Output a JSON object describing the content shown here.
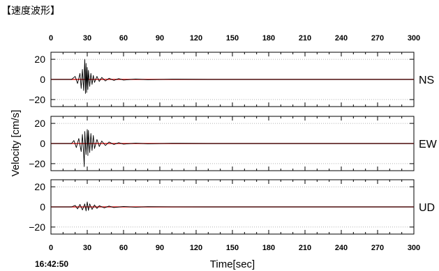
{
  "page": {
    "heading": "【速度波形】"
  },
  "chart_data": {
    "type": "line",
    "title": "",
    "xlabel": "Time[sec]",
    "ylabel": "Velocity [cm/s]",
    "start_time": "16:42:50",
    "xlim": [
      0,
      300
    ],
    "ylim": [
      -27,
      27
    ],
    "x_ticks": [
      0,
      30,
      60,
      90,
      120,
      150,
      180,
      210,
      240,
      270,
      300
    ],
    "y_ticks": [
      20,
      0,
      -20
    ],
    "grid": true,
    "zero_line_color": "#e02020",
    "trace_color": "#000000",
    "series": [
      {
        "name": "NS",
        "onset_sec": 17,
        "peak_time_sec": 28,
        "peak_value": 20,
        "min_value": -14,
        "t": [
          0,
          17,
          20,
          22,
          24,
          25,
          26,
          27,
          28,
          28.5,
          29,
          29.5,
          30,
          30.5,
          31,
          32,
          33,
          34,
          35,
          36,
          38,
          40,
          42,
          45,
          48,
          52,
          56,
          60,
          70,
          80,
          100,
          130,
          300
        ],
        "v": [
          0,
          0,
          3,
          -4,
          6,
          -9,
          10,
          -11,
          20,
          -14,
          16,
          -13,
          12,
          -10,
          9,
          -7,
          6,
          -5,
          4,
          -3,
          3,
          -2,
          2,
          -1.5,
          1.2,
          -1,
          0.8,
          -0.6,
          0.4,
          -0.3,
          0.2,
          0,
          0
        ]
      },
      {
        "name": "EW",
        "onset_sec": 17,
        "peak_time_sec": 30,
        "peak_value": 14,
        "min_value": -23,
        "t": [
          0,
          17,
          19,
          21,
          23,
          25,
          26,
          27,
          27.5,
          28,
          29,
          30,
          30.5,
          31,
          32,
          33,
          34,
          35,
          36,
          38,
          40,
          42,
          45,
          48,
          52,
          56,
          60,
          70,
          80,
          100,
          130,
          300
        ],
        "v": [
          0,
          0,
          3,
          -4,
          5,
          -8,
          9,
          -10,
          -23,
          12,
          -11,
          14,
          -12,
          13,
          -9,
          10,
          -7,
          8,
          -5,
          4,
          -3,
          2.5,
          -2,
          1.5,
          -1,
          0.8,
          -0.6,
          0.4,
          -0.3,
          0.2,
          0,
          0
        ]
      },
      {
        "name": "UD",
        "onset_sec": 17,
        "peak_time_sec": 30,
        "peak_value": 5,
        "min_value": -4,
        "t": [
          0,
          17,
          20,
          22,
          24,
          26,
          28,
          29,
          30,
          31,
          32,
          34,
          36,
          38,
          40,
          44,
          48,
          52,
          60,
          70,
          80,
          100,
          130,
          300
        ],
        "v": [
          0,
          0,
          1.5,
          -2,
          2.5,
          -3,
          3,
          -4,
          5,
          -3.5,
          3,
          -2.5,
          2,
          -1.5,
          1.2,
          -1,
          0.8,
          -0.6,
          0.4,
          -0.3,
          0.2,
          0.1,
          0,
          0
        ]
      }
    ]
  }
}
